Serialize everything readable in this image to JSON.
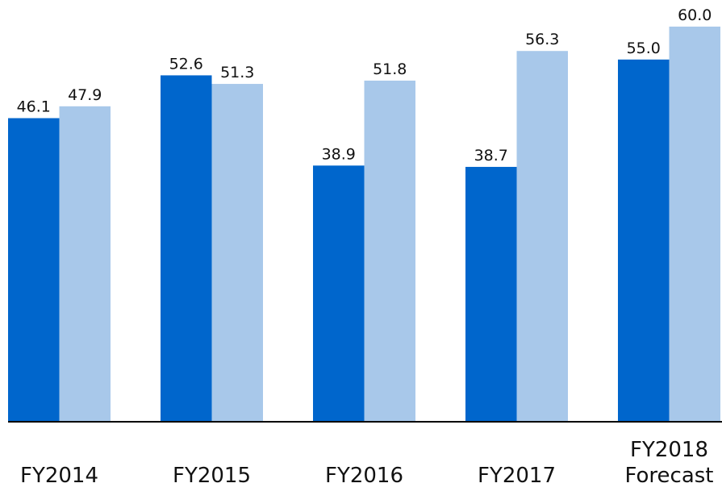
{
  "chart_data": {
    "type": "bar",
    "categories": [
      "FY2014",
      "FY2015",
      "FY2016",
      "FY2017",
      "FY2018 Forecast"
    ],
    "series": [
      {
        "color": "#0066cc",
        "values": [
          46.1,
          52.6,
          38.9,
          38.7,
          55.0
        ],
        "value_labels": [
          "46.1",
          "52.6",
          "38.9",
          "38.7",
          "55.0"
        ]
      },
      {
        "color": "#a8c8ea",
        "values": [
          47.9,
          51.3,
          51.8,
          56.3,
          60.0
        ],
        "value_labels": [
          "47.9",
          "51.3",
          "51.8",
          "56.3",
          "60.0"
        ]
      }
    ],
    "ylim": [
      0,
      60
    ]
  }
}
